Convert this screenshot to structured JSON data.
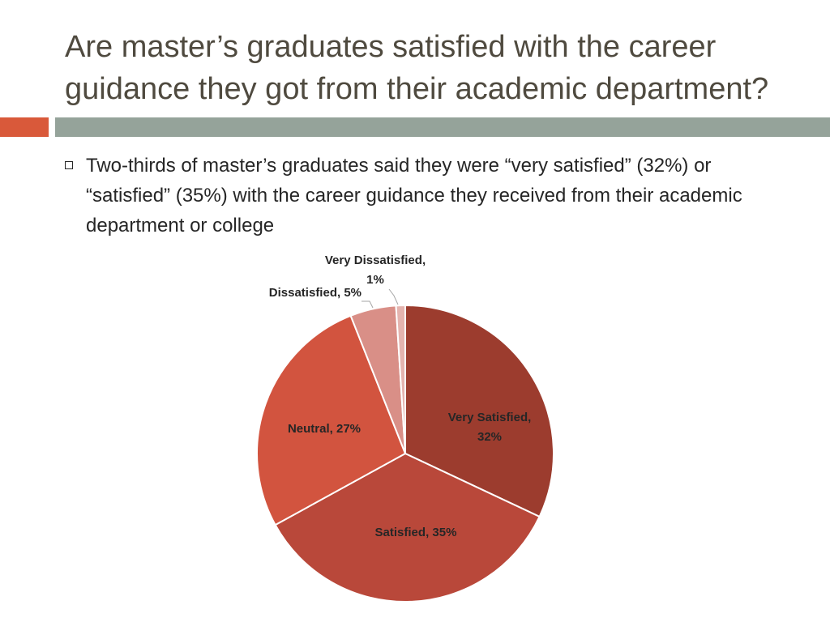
{
  "slide": {
    "title_line1": "Are master’s graduates satisfied with the career",
    "title_line2": "guidance they got from their academic department?",
    "bullets": [
      "Two-thirds of master’s graduates said they were “very satisfied” (32%) or “satisfied” (35%) with the career guidance they received from their academic department or college"
    ]
  },
  "colors": {
    "title_text": "#4f4a3f",
    "accent_orange": "#d9593a",
    "accent_gray": "#95a39a",
    "label_dark": "#ffffff",
    "label_light": "#262626",
    "slice_border": "#ffffff"
  },
  "chart_data": {
    "type": "pie",
    "title": "",
    "start_angle_deg": 0,
    "direction": "clockwise",
    "slices": [
      {
        "label": "Very Satisfied",
        "value": 32,
        "display": "Very Satisfied,\n32%",
        "color": "#9c3c2e",
        "label_inside": true
      },
      {
        "label": "Satisfied",
        "value": 35,
        "display": "Satisfied, 35%",
        "color": "#b9483a",
        "label_inside": true
      },
      {
        "label": "Neutral",
        "value": 27,
        "display": "Neutral, 27%",
        "color": "#d2543f",
        "label_inside": true
      },
      {
        "label": "Dissatisfied",
        "value": 5,
        "display": "Dissatisfied, 5%",
        "color": "#d98f87",
        "label_inside": false
      },
      {
        "label": "Very Dissatisfied",
        "value": 1,
        "display": "Very Dissatisfied,\n1%",
        "color": "#e4b4af",
        "label_inside": false
      }
    ]
  }
}
